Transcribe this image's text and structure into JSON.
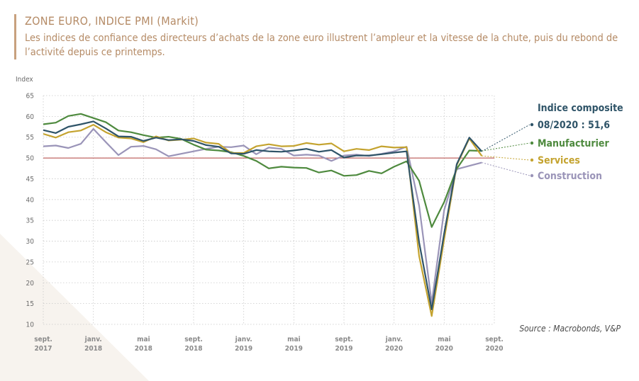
{
  "header": {
    "title": "ZONE EURO, INDICE PMI (Markit)",
    "subtitle": "Les indices de confiance des directeurs d’achats de la zone euro illustrent l’ampleur et la vitesse de la chute, puis du rebond de l’activité depuis ce printemps."
  },
  "source": "Source : Macrobonds, V&P",
  "colors": {
    "composite": "#2f5468",
    "manufacturier": "#4e8a3e",
    "services": "#c4a32f",
    "construction": "#9a94b8",
    "reference": "#b0413e",
    "grid": "#c9c9c9"
  },
  "chart_data": {
    "type": "line",
    "title": "ZONE EURO, INDICE PMI (Markit)",
    "ylabel": "Index",
    "ylim": [
      10,
      65
    ],
    "yticks": [
      10,
      15,
      20,
      25,
      30,
      35,
      40,
      45,
      50,
      55,
      60,
      65
    ],
    "reference_line": 50,
    "x": [
      "2017-09",
      "2017-10",
      "2017-11",
      "2017-12",
      "2018-01",
      "2018-02",
      "2018-03",
      "2018-04",
      "2018-05",
      "2018-06",
      "2018-07",
      "2018-08",
      "2018-09",
      "2018-10",
      "2018-11",
      "2018-12",
      "2019-01",
      "2019-02",
      "2019-03",
      "2019-04",
      "2019-05",
      "2019-06",
      "2019-07",
      "2019-08",
      "2019-09",
      "2019-10",
      "2019-11",
      "2019-12",
      "2020-01",
      "2020-02",
      "2020-03",
      "2020-04",
      "2020-05",
      "2020-06",
      "2020-07",
      "2020-08",
      "2020-09"
    ],
    "x_tick_labels": [
      {
        "l1": "sept.",
        "l2": "2017",
        "i": 0
      },
      {
        "l1": "janv.",
        "l2": "2018",
        "i": 4
      },
      {
        "l1": "mai",
        "l2": "2018",
        "i": 8
      },
      {
        "l1": "sept.",
        "l2": "2018",
        "i": 12
      },
      {
        "l1": "janv.",
        "l2": "2019",
        "i": 16
      },
      {
        "l1": "mai",
        "l2": "2019",
        "i": 20
      },
      {
        "l1": "sept.",
        "l2": "2019",
        "i": 24
      },
      {
        "l1": "janv.",
        "l2": "2020",
        "i": 28
      },
      {
        "l1": "mai",
        "l2": "2020",
        "i": 32
      },
      {
        "l1": "sept.",
        "l2": "2020",
        "i": 36
      }
    ],
    "series": [
      {
        "key": "composite",
        "name": "Indice composite",
        "name2": "08/2020 : 51,6",
        "values": [
          56.7,
          56.0,
          57.5,
          58.1,
          58.8,
          57.1,
          55.2,
          55.1,
          54.1,
          54.9,
          54.3,
          54.5,
          54.1,
          53.1,
          52.7,
          51.1,
          51.0,
          51.9,
          51.6,
          51.5,
          51.8,
          52.2,
          51.5,
          51.9,
          50.1,
          50.6,
          50.6,
          50.9,
          51.3,
          51.6,
          29.7,
          13.6,
          31.9,
          48.5,
          54.9,
          51.6,
          null
        ]
      },
      {
        "key": "manufacturier",
        "name": "Manufacturier",
        "values": [
          58.1,
          58.5,
          60.1,
          60.6,
          59.6,
          58.6,
          56.6,
          56.2,
          55.5,
          54.9,
          55.1,
          54.6,
          53.2,
          52.0,
          51.8,
          51.4,
          50.5,
          49.3,
          47.5,
          47.9,
          47.7,
          47.6,
          46.5,
          47.0,
          45.7,
          45.9,
          46.9,
          46.3,
          47.9,
          49.2,
          44.5,
          33.4,
          39.4,
          47.4,
          51.8,
          51.7,
          null
        ]
      },
      {
        "key": "services",
        "name": "Services",
        "values": [
          55.8,
          54.9,
          56.2,
          56.6,
          58.0,
          56.2,
          54.9,
          54.7,
          53.8,
          55.2,
          54.2,
          54.4,
          54.7,
          53.7,
          53.4,
          51.2,
          51.2,
          52.8,
          53.3,
          52.8,
          52.9,
          53.6,
          53.2,
          53.5,
          51.6,
          52.2,
          51.9,
          52.8,
          52.5,
          52.6,
          26.4,
          12.0,
          30.5,
          48.3,
          54.7,
          50.5,
          null
        ]
      },
      {
        "key": "construction",
        "name": "Construction",
        "values": [
          52.8,
          53.0,
          52.4,
          53.4,
          57.0,
          53.8,
          50.7,
          52.7,
          52.9,
          52.1,
          50.4,
          51.0,
          51.6,
          52.2,
          52.7,
          52.6,
          53.0,
          50.9,
          52.5,
          52.2,
          50.6,
          50.8,
          50.6,
          49.3,
          50.6,
          50.8,
          50.5,
          51.0,
          51.6,
          52.7,
          38.5,
          15.1,
          37.5,
          47.3,
          48.1,
          48.9,
          null
        ]
      }
    ]
  }
}
